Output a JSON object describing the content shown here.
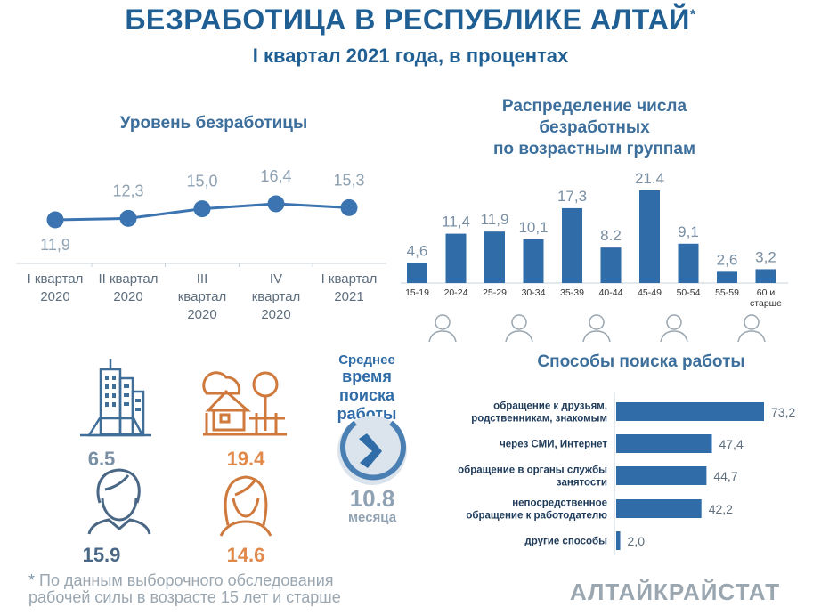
{
  "header": {
    "title": "БЕЗРАБОТИЦА В РЕСПУБЛИКЕ АЛТАЙ",
    "title_mark": "*",
    "subtitle": "I квартал 2021 года, в процентах"
  },
  "colors": {
    "primary": "#2f6ca8",
    "dark": "#1f5f93",
    "muted": "#8fa2b3",
    "orange": "#e0894a",
    "slate": "#7a8fa3"
  },
  "chart_data": [
    {
      "type": "line",
      "title": "Уровень безработицы",
      "categories": [
        [
          "I квартал",
          "2020"
        ],
        [
          "II квартал",
          "2020"
        ],
        [
          "III",
          "квартал",
          "2020"
        ],
        [
          "IV",
          "квартал",
          "2020"
        ],
        [
          "I квартал",
          "2021"
        ]
      ],
      "values": [
        11.9,
        12.3,
        15.0,
        16.4,
        15.3
      ],
      "labels": [
        "11,9",
        "12,3",
        "15,0",
        "16,4",
        "15,3"
      ]
    },
    {
      "type": "bar",
      "title": "Распределение числа безработных по возрастным группам",
      "title_lines": [
        "Распределение числа",
        "безработных",
        "по возрастным группам"
      ],
      "categories": [
        "15-19",
        "20-24",
        "25-29",
        "30-34",
        "35-39",
        "40-44",
        "45-49",
        "50-54",
        "55-59",
        "60 и старше"
      ],
      "category_lines": [
        [
          "15-19"
        ],
        [
          "20-24"
        ],
        [
          "25-29"
        ],
        [
          "30-34"
        ],
        [
          "35-39"
        ],
        [
          "40-44"
        ],
        [
          "45-49"
        ],
        [
          "50-54"
        ],
        [
          "55-59"
        ],
        [
          "60 и",
          "старше"
        ]
      ],
      "values": [
        4.6,
        11.4,
        11.9,
        10.1,
        17.3,
        8.2,
        21.4,
        9.1,
        2.6,
        3.2
      ],
      "labels": [
        "4,6",
        "11,4",
        "11,9",
        "10,1",
        "17,3",
        "8.2",
        "21.4",
        "9,1",
        "2,6",
        "3,2"
      ]
    },
    {
      "type": "bar",
      "orientation": "horizontal",
      "title": "Способы поиска работы",
      "categories": [
        [
          "обращение к друзьям,",
          "родственникам, знакомым"
        ],
        [
          "через СМИ, Интернет"
        ],
        [
          "обращение в органы службы",
          "занятости"
        ],
        [
          "непосредственное",
          "обращение к работодателю"
        ],
        [
          "другие способы"
        ]
      ],
      "values": [
        73.2,
        47.4,
        44.7,
        42.2,
        2.0
      ],
      "labels": [
        "73,2",
        "47,4",
        "44,7",
        "42,2",
        "2,0"
      ]
    }
  ],
  "stats": {
    "urban": "6.5",
    "rural": "19.4",
    "men": "15.9",
    "women": "14.6"
  },
  "search_time": {
    "title_lines": [
      "Среднее",
      "время",
      "поиска",
      "работы"
    ],
    "value": "10.8",
    "unit": "месяца"
  },
  "footer": {
    "note_lines": [
      "По данным выборочного обследования",
      "рабочей силы в возрасте 15 лет и старше"
    ],
    "note_mark": "*",
    "brand": "АЛТАЙКРАЙСТАТ"
  },
  "icons": [
    "city-icon",
    "house-icon",
    "man-icon",
    "woman-icon",
    "clock-arrow-icon",
    "age-person-icons"
  ]
}
